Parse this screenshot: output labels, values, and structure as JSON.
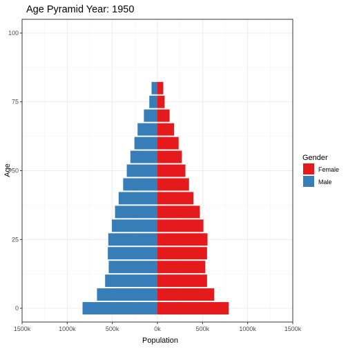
{
  "chart_data": {
    "type": "bar",
    "orientation": "horizontal",
    "layout": "population-pyramid",
    "title": "Age Pyramid  Year: 1950",
    "xlabel": "Population",
    "ylabel": "Age",
    "xlim": [
      -1500000,
      1500000
    ],
    "ylim": [
      -5,
      105
    ],
    "x_ticks": [
      {
        "value": -1500000,
        "label": "1500k"
      },
      {
        "value": -1000000,
        "label": "1000k"
      },
      {
        "value": -500000,
        "label": "500k"
      },
      {
        "value": 0,
        "label": "0k"
      },
      {
        "value": 500000,
        "label": "500k"
      },
      {
        "value": 1000000,
        "label": "1000k"
      },
      {
        "value": 1500000,
        "label": "1500k"
      }
    ],
    "y_ticks": [
      {
        "value": 0,
        "label": "0"
      },
      {
        "value": 25,
        "label": "25"
      },
      {
        "value": 50,
        "label": "50"
      },
      {
        "value": 75,
        "label": "75"
      },
      {
        "value": 100,
        "label": "100"
      }
    ],
    "age_groups": [
      0,
      5,
      10,
      15,
      20,
      25,
      30,
      35,
      40,
      45,
      50,
      55,
      60,
      65,
      70,
      75,
      80
    ],
    "bin_width": 5,
    "grid": true,
    "legend": {
      "title": "Gender",
      "position": "right",
      "entries": [
        {
          "name": "Female",
          "color": "#E41A1C"
        },
        {
          "name": "Male",
          "color": "#377EB8"
        }
      ]
    },
    "series": [
      {
        "name": "Female",
        "color": "#E41A1C",
        "values": [
          790000,
          630000,
          550000,
          530000,
          550000,
          555000,
          510000,
          470000,
          400000,
          350000,
          310000,
          270000,
          235000,
          185000,
          135000,
          80000,
          65000
        ]
      },
      {
        "name": "Male",
        "color": "#377EB8",
        "values": [
          830000,
          670000,
          580000,
          540000,
          550000,
          545000,
          505000,
          470000,
          430000,
          380000,
          340000,
          300000,
          255000,
          220000,
          150000,
          90000,
          65000
        ]
      }
    ]
  }
}
